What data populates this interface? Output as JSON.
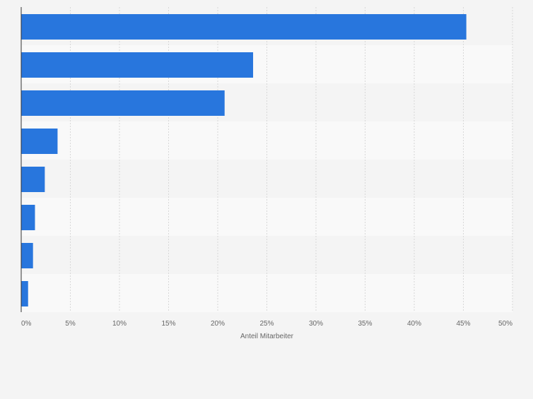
{
  "chart_data": {
    "type": "bar",
    "orientation": "horizontal",
    "categories": [
      "",
      "",
      "",
      "",
      "",
      "",
      "",
      ""
    ],
    "values": [
      45.3,
      23.6,
      20.7,
      3.7,
      2.4,
      1.4,
      1.2,
      0.7
    ],
    "xlabel": "Anteil Mitarbeiter",
    "ylabel": "",
    "xlim": [
      0,
      50
    ],
    "x_ticks": [
      0,
      5,
      10,
      15,
      20,
      25,
      30,
      35,
      40,
      45,
      50
    ],
    "x_tick_labels": [
      "0%",
      "5%",
      "10%",
      "15%",
      "20%",
      "25%",
      "30%",
      "35%",
      "40%",
      "45%",
      "50%"
    ],
    "grid": true,
    "legend": "none",
    "colors": {
      "bar": "#2876dd",
      "band_light": "#f9f9f9",
      "band_dark": "#f4f4f4",
      "gridline": "#d8d8d8",
      "axis": "#333333",
      "text": "#666666"
    }
  }
}
